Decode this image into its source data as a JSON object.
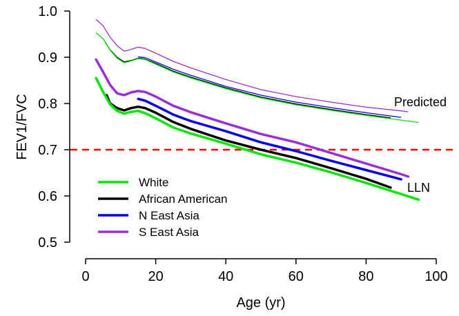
{
  "chart_data": {
    "type": "line",
    "xlabel": "Age (yr)",
    "ylabel": "FEV1/FVC",
    "xlim": [
      0,
      100
    ],
    "ylim": [
      0.5,
      1.0
    ],
    "x_ticks": [
      "0",
      "20",
      "40",
      "60",
      "80",
      "100"
    ],
    "y_ticks": [
      "0.5",
      "0.6",
      "0.7",
      "0.8",
      "0.9",
      "1.0"
    ],
    "grid": false,
    "legend_position": "bottom-left",
    "annotations": [
      {
        "text": "Predicted",
        "x": 92,
        "y": 0.8
      },
      {
        "text": "LLN",
        "x": 92,
        "y": 0.616
      }
    ],
    "reference_line": {
      "y": 0.7,
      "color": "#ff0000",
      "style": "dashed"
    },
    "series": [
      {
        "name": "White",
        "color": "#00e600",
        "predicted": {
          "x": [
            3,
            5,
            7,
            9,
            11,
            13,
            15,
            17,
            20,
            25,
            30,
            40,
            50,
            60,
            70,
            80,
            90,
            95
          ],
          "y": [
            0.953,
            0.94,
            0.915,
            0.898,
            0.888,
            0.892,
            0.897,
            0.895,
            0.885,
            0.868,
            0.855,
            0.832,
            0.812,
            0.797,
            0.785,
            0.774,
            0.764,
            0.759
          ]
        },
        "lln": {
          "x": [
            3,
            5,
            7,
            9,
            11,
            13,
            15,
            17,
            20,
            25,
            30,
            40,
            50,
            60,
            70,
            80,
            90,
            95
          ],
          "y": [
            0.855,
            0.825,
            0.798,
            0.784,
            0.778,
            0.782,
            0.784,
            0.779,
            0.768,
            0.748,
            0.735,
            0.713,
            0.69,
            0.672,
            0.651,
            0.628,
            0.604,
            0.592
          ]
        }
      },
      {
        "name": "African American",
        "color": "#000000",
        "predicted": {
          "x": [
            5,
            7,
            9,
            11,
            13,
            15,
            17,
            20,
            25,
            30,
            40,
            50,
            60,
            70,
            80,
            87
          ],
          "y": [
            0.94,
            0.916,
            0.9,
            0.89,
            0.893,
            0.898,
            0.896,
            0.887,
            0.87,
            0.857,
            0.834,
            0.814,
            0.799,
            0.787,
            0.776,
            0.769
          ]
        },
        "lln": {
          "x": [
            6,
            7,
            9,
            11,
            13,
            15,
            17,
            20,
            25,
            30,
            40,
            50,
            60,
            70,
            80,
            87
          ],
          "y": [
            0.818,
            0.8,
            0.79,
            0.785,
            0.79,
            0.793,
            0.79,
            0.78,
            0.76,
            0.745,
            0.72,
            0.7,
            0.682,
            0.66,
            0.637,
            0.618
          ]
        }
      },
      {
        "name": "N East Asia",
        "color": "#0000ee",
        "predicted": {
          "x": [
            15,
            17,
            20,
            25,
            30,
            40,
            50,
            60,
            70,
            80,
            90
          ],
          "y": [
            0.901,
            0.899,
            0.89,
            0.874,
            0.861,
            0.837,
            0.818,
            0.803,
            0.791,
            0.78,
            0.77
          ]
        },
        "lln": {
          "x": [
            15,
            17,
            20,
            25,
            30,
            40,
            50,
            60,
            70,
            80,
            90
          ],
          "y": [
            0.81,
            0.806,
            0.795,
            0.776,
            0.762,
            0.74,
            0.716,
            0.697,
            0.676,
            0.656,
            0.636
          ]
        }
      },
      {
        "name": "S East Asia",
        "color": "#9b2fd6",
        "predicted": {
          "x": [
            3,
            5,
            7,
            9,
            11,
            13,
            15,
            17,
            20,
            25,
            30,
            40,
            50,
            60,
            70,
            80,
            90,
            92
          ],
          "y": [
            0.982,
            0.968,
            0.943,
            0.925,
            0.913,
            0.917,
            0.922,
            0.919,
            0.909,
            0.891,
            0.877,
            0.852,
            0.83,
            0.815,
            0.803,
            0.792,
            0.784,
            0.782
          ]
        },
        "lln": {
          "x": [
            3,
            5,
            7,
            9,
            11,
            13,
            15,
            17,
            20,
            25,
            30,
            40,
            50,
            60,
            70,
            80,
            90,
            92
          ],
          "y": [
            0.895,
            0.868,
            0.84,
            0.822,
            0.818,
            0.824,
            0.827,
            0.825,
            0.815,
            0.795,
            0.781,
            0.757,
            0.734,
            0.716,
            0.693,
            0.67,
            0.647,
            0.642
          ]
        }
      }
    ]
  }
}
